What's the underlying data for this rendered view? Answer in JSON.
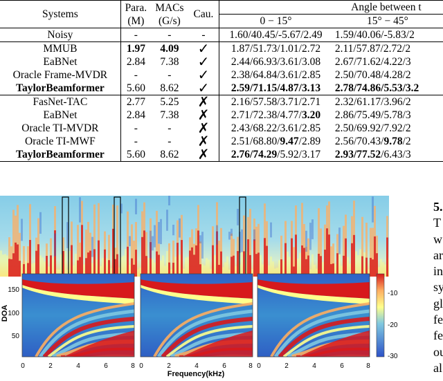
{
  "table": {
    "headers": {
      "systems": "Systems",
      "params": [
        "Para.",
        "(M)"
      ],
      "macs": [
        "MACs",
        "(G/s)"
      ],
      "causal": "Cau.",
      "angle_group": "Angle between t",
      "angle_sub": [
        "0 − 15°",
        "15° − 45°"
      ]
    },
    "noisy": {
      "name": "Noisy",
      "params": "-",
      "macs": "-",
      "causal": "-",
      "a1": "1.60/40.45/-5.67/2.49",
      "a2": "1.59/40.06/-5.83/2"
    },
    "group1": [
      {
        "name": "MMUB",
        "params": "1.97",
        "macs": "4.09",
        "causal": "✓",
        "a1": "1.87/51.73/1.01/2.72",
        "a2": "2.11/57.87/2.72/2"
      },
      {
        "name": "EaBNet",
        "params": "2.84",
        "macs": "7.38",
        "causal": "✓",
        "a1": "2.44/66.93/3.61/3.08",
        "a2": "2.67/71.62/4.22/3"
      },
      {
        "name": "Oracle Frame-MVDR",
        "params": "-",
        "macs": "-",
        "causal": "✓",
        "a1": "2.38/64.84/3.61/2.85",
        "a2": "2.50/70.48/4.28/2"
      },
      {
        "name": "TaylorBeamformer",
        "params": "5.60",
        "macs": "8.62",
        "causal": "✓",
        "a1": "2.59/71.15/4.87/3.13",
        "a2": "2.78/74.86/5.53/3.2"
      }
    ],
    "group2": [
      {
        "name": "FasNet-TAC",
        "params": "2.77",
        "macs": "5.25",
        "causal": "✗",
        "a1": "2.16/57.58/3.71/2.71",
        "a2": "2.32/61.17/3.96/2"
      },
      {
        "name": "EaBNet",
        "params": "2.84",
        "macs": "7.38",
        "causal": "✗",
        "a1": "2.71/72.38/4.77/",
        "a1b": "3.20",
        "a2": "2.86/75.49/5.78/3"
      },
      {
        "name": "Oracle TI-MVDR",
        "params": "-",
        "macs": "-",
        "causal": "✗",
        "a1": "2.43/68.22/3.61/2.85",
        "a2": "2.50/69.92/7.92/2"
      },
      {
        "name": "Oracle TI-MWF",
        "params": "-",
        "macs": "-",
        "causal": "✗",
        "a1a": "2.51/68.80/",
        "a1b": "9.47",
        "a1c": "/2.89",
        "a2a": "2.56/70.43/",
        "a2b": "9.78",
        "a2c": "/2"
      },
      {
        "name": "TaylorBeamformer",
        "params": "5.60",
        "macs": "8.62",
        "causal": "✗",
        "a1a": "2.76/74.29",
        "a1c": "/5.92/3.17",
        "a2a": "2.93/77.52",
        "a2c": "/6.43/3"
      }
    ]
  },
  "figure": {
    "doa_label": "DOA",
    "y_ticks": [
      "150",
      "100",
      "50"
    ],
    "x_ticks": [
      "0",
      "2",
      "4",
      "6",
      "8"
    ],
    "xlabel": "Frequency(kHz)",
    "colorbar_ticks": [
      "-10",
      "-20",
      "-30"
    ],
    "colors": {
      "hot": "#d7191c",
      "warm": "#fdae61",
      "mid": "#ffff8c",
      "cool": "#80c8e0",
      "cold": "#2c52c8"
    }
  },
  "side_text": {
    "heading": "5.",
    "lines": [
      "T",
      "w",
      "ar",
      "in",
      "sy",
      "gl",
      "fe",
      "fe",
      "ou",
      "al"
    ]
  }
}
